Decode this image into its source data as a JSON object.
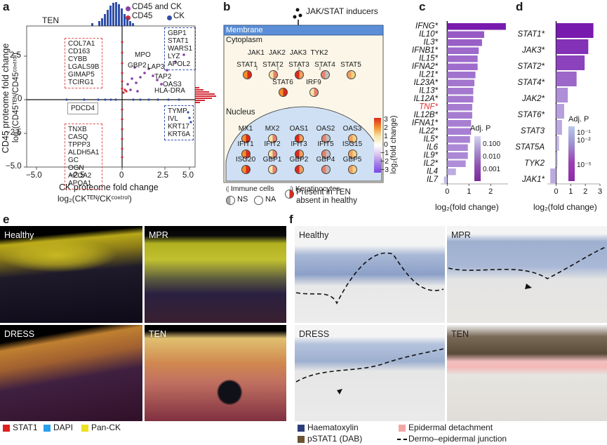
{
  "panels": {
    "a": "a",
    "b": "b",
    "c": "c",
    "d": "d",
    "e": "e",
    "f": "f"
  },
  "panel_a": {
    "title": "TEN",
    "legend": [
      "CD45 and CK",
      "CD45",
      "CK"
    ],
    "legend_colors": [
      "#8a3fa6",
      "#d42a35",
      "#2f4fa8"
    ],
    "ylabel_line1": "CD45 proteome fold change",
    "ylabel_line2": "log₂(CD45ᵀᴱᴺ/CD45ᶜᵒⁿᵗʳᵒˡ)",
    "xlabel_line1": "CK proteome fold change",
    "xlabel_line2": "log₂(CKᵀᴱᴺ/CKᶜᵒⁿᵗʳᵒˡ)",
    "xticks": [
      "−5.0",
      "−2.5",
      "0",
      "2.5",
      "5.0"
    ],
    "yticks": [
      "2.5",
      "0",
      "−2.5",
      "−5.0"
    ],
    "box_upper_left": "COL7A1\nCD163\nCYBB\nLGALS9B\nGIMAP5\nTCIRG1",
    "box_upper_right": "GBP1\nSTAT1\nWARS1\nLYZ\nAPOL2",
    "box_lower_left": "TNXB\nCASQ\nTPPP3\nALDH5A1\nGC\nOGN\nAPOA2\nAPOA1",
    "box_lower_right": "TYMP\nIVL\nKRT17\nKRT6A",
    "box_pdcd4": "PDCD4",
    "gene_labels": [
      "MPO",
      "GBP2",
      "LAP3",
      "TAP2",
      "OAS3",
      "HLA-DRA"
    ]
  },
  "panel_b": {
    "inducers": "JAK/STAT inducers",
    "membrane": "Membrane",
    "cytoplasm": "Cytoplasm",
    "nucleus": "Nucleus",
    "jaks": [
      "JAK1",
      "JAK2",
      "JAK3",
      "TYK2"
    ],
    "stats_row1": [
      "STAT1",
      "STAT2",
      "STAT3",
      "STAT4",
      "STAT5"
    ],
    "stats_row2": [
      "STAT6",
      "IRF9"
    ],
    "nuc_row1": [
      "MX1",
      "MX2",
      "OAS1",
      "OAS2",
      "OAS3"
    ],
    "nuc_row2": [
      "IFIT1",
      "IFIT2",
      "IFIT3",
      "IFIT5",
      "ISG15"
    ],
    "nuc_row3": [
      "ISG20",
      "GBP1",
      "GBP2",
      "GBP4",
      "GBP5"
    ],
    "colorbar_ticks": [
      "3",
      "2",
      "1",
      "0",
      "−1",
      "−2",
      "−3"
    ],
    "colorbar_label": "log₂(fold change)",
    "legend_immune": "Immune cells",
    "legend_kerat": "Keratinocytes",
    "legend_ns": "NS",
    "legend_na": "NA",
    "legend_present": "Present in TEN\nabsent in healthy"
  },
  "chart_data": [
    {
      "type": "bar",
      "panel": "c",
      "categories": [
        "IFNG*",
        "IL10*",
        "IL3*",
        "IFNB1*",
        "IL15*",
        "IFNA2*",
        "IL21*",
        "IL23A*",
        "IL13*",
        "IL12A*",
        "TNF*",
        "IL12B*",
        "IFNA1*",
        "IL22*",
        "IL5*",
        "IL6",
        "IL9*",
        "IL2*",
        "IL4",
        "IL7"
      ],
      "values": [
        2.7,
        1.7,
        1.6,
        1.45,
        1.4,
        1.4,
        1.3,
        1.25,
        1.2,
        1.2,
        1.15,
        1.15,
        1.1,
        1.1,
        1.05,
        0.95,
        0.95,
        0.85,
        0.4,
        -0.15
      ],
      "highlight": [
        "TNF*"
      ],
      "highlight_color": "#e03030",
      "xlabel": "log₂(fold change)",
      "xticks": [
        "0",
        "1",
        "2"
      ],
      "xlim": [
        -0.3,
        2.8
      ],
      "colorbar_title": "Adj. P",
      "colorbar_ticks": [
        "0.100",
        "0.010",
        "0.001"
      ]
    },
    {
      "type": "bar",
      "panel": "d",
      "categories": [
        "STAT1*",
        "JAK3*",
        "STAT2*",
        "STAT4*",
        "JAK2*",
        "STAT6*",
        "STAT3",
        "STAT5A",
        "TYK2",
        "JAK1*"
      ],
      "values": [
        2.55,
        2.2,
        1.95,
        1.4,
        0.8,
        0.55,
        0.4,
        0.2,
        0.1,
        -0.4
      ],
      "xlabel": "log₂(fold change)",
      "xticks": [
        "0",
        "1",
        "2",
        "3"
      ],
      "xlim": [
        -0.6,
        3.0
      ],
      "colorbar_title": "Adj. P",
      "colorbar_ticks": [
        "10⁻¹",
        "10⁻²",
        "10⁻⁵"
      ]
    }
  ],
  "panel_e": {
    "tiles": [
      "Healthy",
      "MPR",
      "DRESS",
      "TEN"
    ],
    "legend": [
      "STAT1",
      "DAPI",
      "Pan-CK"
    ],
    "legend_colors": [
      "#e02020",
      "#2aa0ee",
      "#f0e020"
    ]
  },
  "panel_f": {
    "tiles": [
      "Healthy",
      "MPR",
      "DRESS",
      "TEN"
    ],
    "legend": [
      "Haematoxylin",
      "pSTAT1 (DAB)",
      "Epidermal detachment",
      "Dermo–epidermal junction"
    ],
    "legend_colors": [
      "#2d3d7a",
      "#6b5532",
      "#f4a6a6",
      "#000000"
    ]
  }
}
